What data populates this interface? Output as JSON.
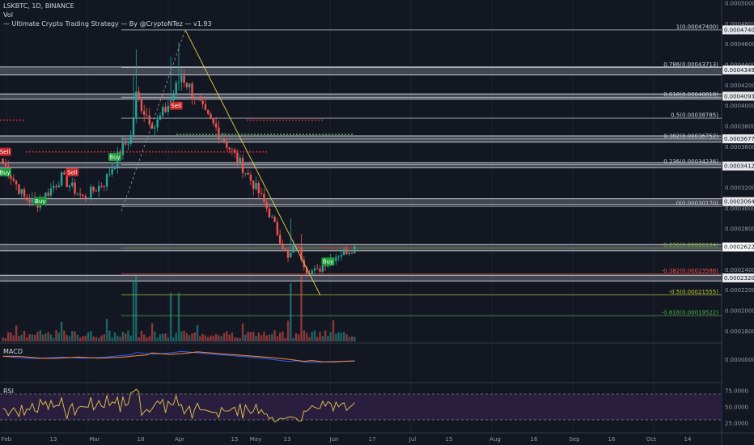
{
  "header": {
    "symbol_line": "LSKBTC, 1D, BINANCE",
    "vol_label": "Vol",
    "strategy_line": "— Ultimate Crypto Trading Strategy — By @CryptoNTez — v1.93"
  },
  "panes": {
    "macd_label": "MACD",
    "rsi_label": "RSI"
  },
  "colors": {
    "background": "#131722",
    "up": "#26a69a",
    "down": "#ef5350",
    "trendline": "#d4c24a",
    "band": "#6a6d78",
    "buy": "#1f9d3a",
    "sell": "#c62828",
    "macd_line": "#2962ff",
    "signal_line": "#ff8a3d",
    "rsi_line": "#e6c84a",
    "rsi_band": "#2a1e3e"
  },
  "chart_data": {
    "type": "candlestick",
    "x_ticks": [
      "Feb",
      "13",
      "Mar",
      "18",
      "Apr",
      "15",
      "May",
      "13",
      "Jun",
      "17",
      "Jul",
      "15",
      "Aug",
      "16",
      "Sep",
      "16",
      "Oct",
      "14"
    ],
    "price_axis": {
      "range": [
        0.00017,
        0.0005
      ],
      "ticks": [
        "0.00050000",
        "0.00048000",
        "0.00046000",
        "0.00044000",
        "0.00042000",
        "0.00040000",
        "0.00038000",
        "0.00036000",
        "0.00034000",
        "0.00032000",
        "0.00030000",
        "0.00028000",
        "0.00026000",
        "0.00024000",
        "0.00022000",
        "0.00020000",
        "0.00018000"
      ],
      "current_price": "0.00026221"
    },
    "price_badges": [
      "0.00047400",
      "0.00043490",
      "0.00040930",
      "0.00036770",
      "0.00034120",
      "0.00030642",
      "0.00026221",
      "0.00023200"
    ],
    "fib_levels": [
      {
        "label": "1(0.00047400)",
        "value": 0.000474,
        "color": "#d1d4dc"
      },
      {
        "label": "0.786(0.00043713)",
        "value": 0.00043713,
        "color": "#d1d4dc"
      },
      {
        "label": "0.618(0.00040818)",
        "value": 0.00040818,
        "color": "#d1d4dc"
      },
      {
        "label": "0.5(0.00038785)",
        "value": 0.00038785,
        "color": "#d1d4dc"
      },
      {
        "label": "0.382(0.00036752)",
        "value": 0.00036752,
        "color": "#d1d4dc"
      },
      {
        "label": "0.236(0.00034236)",
        "value": 0.00034236,
        "color": "#d1d4dc"
      },
      {
        "label": "0(0.00030170)",
        "value": 0.0003017,
        "color": "#d1d4dc"
      },
      {
        "label": "-0.236(0.00026104)",
        "value": 0.00026104,
        "color": "#7cb342"
      },
      {
        "label": "-0.382(0.00023588)",
        "value": 0.00023588,
        "color": "#ef5350"
      },
      {
        "label": "-0.5(0.00021555)",
        "value": 0.00021555,
        "color": "#c0ca33"
      },
      {
        "label": "-0.618(0.00019522)",
        "value": 0.00019522,
        "color": "#4caf50"
      }
    ],
    "sr_bands": [
      [
        0.00043,
        0.0004378
      ],
      [
        0.0004065,
        0.0004115
      ],
      [
        0.0003645,
        0.0003705
      ],
      [
        0.0003395,
        0.0003445
      ],
      [
        0.0003035,
        0.0003092
      ],
      [
        0.0002585,
        0.0002645
      ],
      [
        0.000229,
        0.0002345
      ]
    ],
    "signals": [
      {
        "label": "Sell",
        "kind": "sell",
        "x": 0,
        "price": 0.000355
      },
      {
        "label": "Buy",
        "kind": "buy",
        "x": 0,
        "price": 0.000335
      },
      {
        "label": "Buy",
        "kind": "buy",
        "x": 14,
        "price": 0.000307
      },
      {
        "label": "Sell",
        "kind": "sell",
        "x": 26,
        "price": 0.000335
      },
      {
        "label": "Buy",
        "kind": "buy",
        "x": 42,
        "price": 0.00035
      },
      {
        "label": "Sell",
        "kind": "sell",
        "x": 65,
        "price": 0.0004
      },
      {
        "label": "Buy",
        "kind": "buy",
        "x": 122,
        "price": 0.000248
      }
    ],
    "rsi_axis": {
      "ticks": [
        "75.0000",
        "50.0000",
        "25.0000"
      ],
      "levels": [
        70,
        30
      ]
    },
    "macd_axis": {
      "ticks": [
        "0.0000000"
      ]
    }
  }
}
